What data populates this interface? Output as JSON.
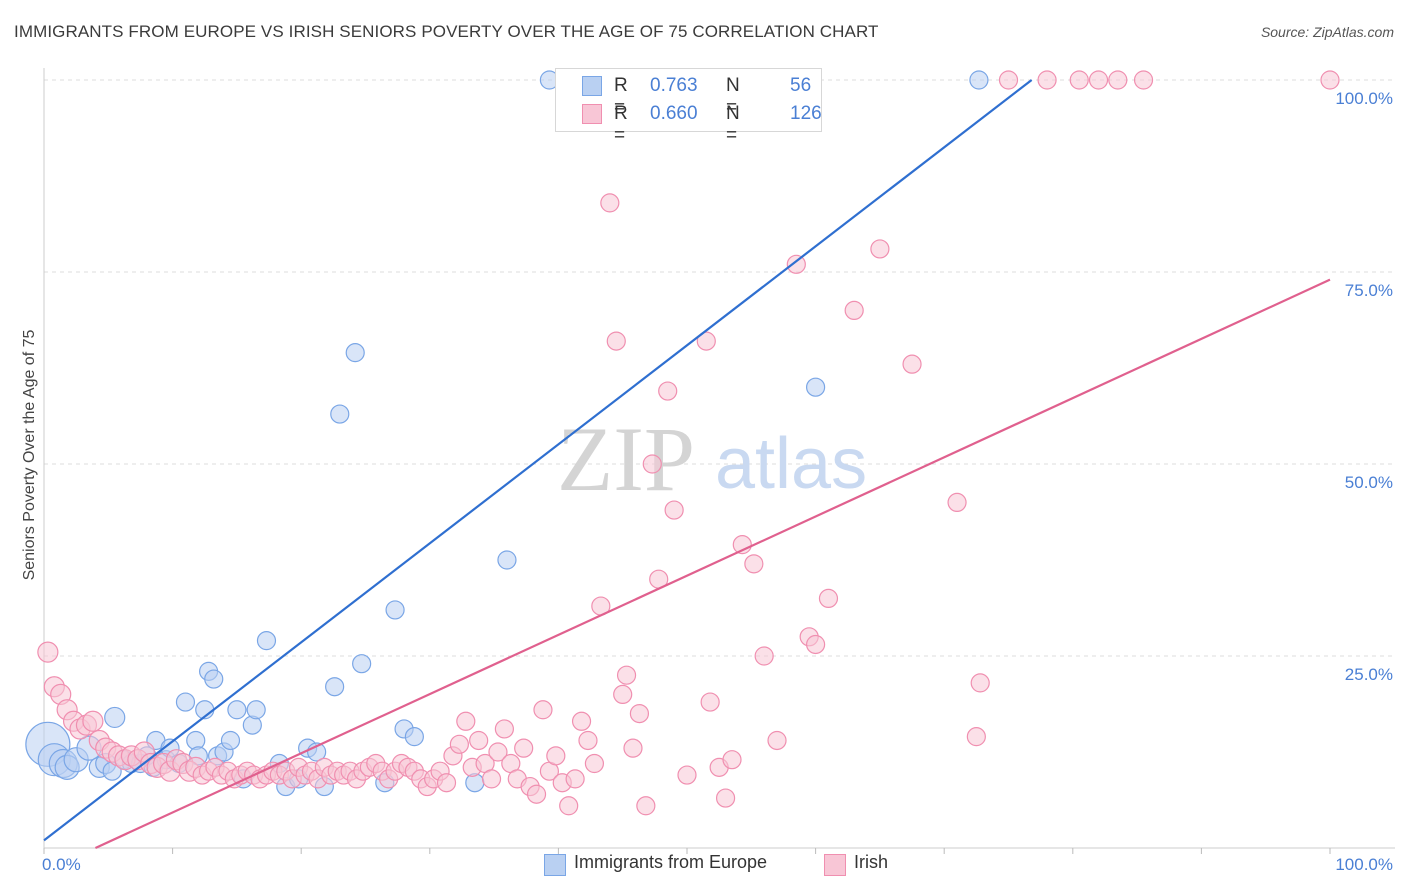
{
  "title": "IMMIGRANTS FROM EUROPE VS IRISH SENIORS POVERTY OVER THE AGE OF 75 CORRELATION CHART",
  "source": "Source: ZipAtlas.com",
  "watermark": {
    "zip": "ZIP",
    "atlas": "atlas"
  },
  "legend": {
    "r_label": "R =",
    "n_label": "N =",
    "series": [
      {
        "name": "Immigrants from Europe",
        "r": "0.763",
        "n": "56",
        "color": "#7aa6e6",
        "fill": "#b9d0f2"
      },
      {
        "name": "Irish",
        "r": "0.660",
        "n": "126",
        "color": "#f08fb0",
        "fill": "#f8c6d6"
      }
    ]
  },
  "chart_data": {
    "type": "scatter",
    "title": "IMMIGRANTS FROM EUROPE VS IRISH SENIORS POVERTY OVER THE AGE OF 75 CORRELATION CHART",
    "ylabel": "Seniors Poverty Over the Age of 75",
    "xlabel": "",
    "xlim": [
      0,
      100
    ],
    "ylim": [
      0,
      100
    ],
    "x_tick_labels": [
      {
        "value": 0,
        "label": "0.0%"
      },
      {
        "value": 100,
        "label": "100.0%"
      }
    ],
    "y_tick_labels": [
      {
        "value": 25,
        "label": "25.0%"
      },
      {
        "value": 50,
        "label": "50.0%"
      },
      {
        "value": 75,
        "label": "75.0%"
      },
      {
        "value": 100,
        "label": "100.0%"
      }
    ],
    "grid": true,
    "legend_position": "top-center",
    "series": [
      {
        "name": "Immigrants from Europe",
        "color": "#4a82d6",
        "trend": {
          "x": [
            0,
            76.8
          ],
          "y": [
            1.0,
            100.0
          ],
          "color": "#2f6fd0"
        },
        "points": [
          [
            0.3,
            13.5,
            22
          ],
          [
            0.8,
            11.5,
            16
          ],
          [
            1.5,
            11.0,
            14
          ],
          [
            1.8,
            10.5,
            12
          ],
          [
            2.5,
            11.5,
            12
          ],
          [
            3.5,
            13.0,
            12
          ],
          [
            4.3,
            10.5,
            10
          ],
          [
            4.8,
            11.0,
            10
          ],
          [
            5.3,
            10.0,
            9
          ],
          [
            5.5,
            17.0,
            10
          ],
          [
            6.2,
            11.5,
            9
          ],
          [
            6.8,
            11.0,
            9
          ],
          [
            7.5,
            11.0,
            9
          ],
          [
            8.0,
            12.0,
            9
          ],
          [
            8.5,
            10.5,
            9
          ],
          [
            8.7,
            14.0,
            9
          ],
          [
            9.5,
            11.5,
            9
          ],
          [
            9.8,
            13.0,
            9
          ],
          [
            10.5,
            11.0,
            9
          ],
          [
            11.0,
            19.0,
            9
          ],
          [
            11.8,
            14.0,
            9
          ],
          [
            12.0,
            12.0,
            9
          ],
          [
            12.5,
            18.0,
            9
          ],
          [
            12.8,
            23.0,
            9
          ],
          [
            13.2,
            22.0,
            9
          ],
          [
            13.5,
            12.0,
            9
          ],
          [
            14.0,
            12.5,
            9
          ],
          [
            14.5,
            14.0,
            9
          ],
          [
            15.0,
            18.0,
            9
          ],
          [
            15.5,
            9.0,
            9
          ],
          [
            16.2,
            16.0,
            9
          ],
          [
            16.5,
            18.0,
            9
          ],
          [
            17.3,
            27.0,
            9
          ],
          [
            18.3,
            11.0,
            9
          ],
          [
            18.8,
            8.0,
            9
          ],
          [
            19.8,
            9.0,
            9
          ],
          [
            20.5,
            13.0,
            9
          ],
          [
            21.2,
            12.5,
            9
          ],
          [
            21.8,
            8.0,
            9
          ],
          [
            22.6,
            21.0,
            9
          ],
          [
            23.0,
            56.5,
            9
          ],
          [
            24.2,
            64.5,
            9
          ],
          [
            24.7,
            24.0,
            9
          ],
          [
            26.5,
            8.5,
            9
          ],
          [
            27.3,
            31.0,
            9
          ],
          [
            28.0,
            15.5,
            9
          ],
          [
            28.8,
            14.5,
            9
          ],
          [
            33.5,
            8.5,
            9
          ],
          [
            36.0,
            37.5,
            9
          ],
          [
            39.3,
            100.0,
            9
          ],
          [
            40.5,
            100.0,
            9
          ],
          [
            60.0,
            60.0,
            9
          ],
          [
            72.7,
            100.0,
            9
          ]
        ]
      },
      {
        "name": "Irish",
        "color": "#ef8aac",
        "trend": {
          "x": [
            4.0,
            100.0
          ],
          "y": [
            0.0,
            74.0
          ],
          "color": "#e0608e"
        },
        "points": [
          [
            0.3,
            25.5,
            10
          ],
          [
            0.8,
            21.0,
            10
          ],
          [
            1.3,
            20.0,
            10
          ],
          [
            1.8,
            18.0,
            10
          ],
          [
            2.3,
            16.5,
            10
          ],
          [
            2.8,
            15.5,
            10
          ],
          [
            3.3,
            16.0,
            10
          ],
          [
            3.8,
            16.5,
            10
          ],
          [
            4.3,
            14.0,
            10
          ],
          [
            4.8,
            13.0,
            10
          ],
          [
            5.3,
            12.5,
            10
          ],
          [
            5.8,
            12.0,
            10
          ],
          [
            6.3,
            11.5,
            10
          ],
          [
            6.8,
            12.0,
            10
          ],
          [
            7.3,
            11.5,
            10
          ],
          [
            7.8,
            12.5,
            10
          ],
          [
            8.3,
            11.0,
            10
          ],
          [
            8.8,
            10.5,
            10
          ],
          [
            9.3,
            11.0,
            10
          ],
          [
            9.8,
            10.0,
            10
          ],
          [
            10.3,
            11.5,
            10
          ],
          [
            10.8,
            11.0,
            10
          ],
          [
            11.3,
            10.0,
            10
          ],
          [
            11.8,
            10.5,
            10
          ],
          [
            12.3,
            9.5,
            9
          ],
          [
            12.8,
            10.0,
            9
          ],
          [
            13.3,
            10.5,
            9
          ],
          [
            13.8,
            9.5,
            9
          ],
          [
            14.3,
            10.0,
            9
          ],
          [
            14.8,
            9.0,
            9
          ],
          [
            15.3,
            9.5,
            9
          ],
          [
            15.8,
            10.0,
            9
          ],
          [
            16.3,
            9.5,
            9
          ],
          [
            16.8,
            9.0,
            9
          ],
          [
            17.3,
            9.5,
            9
          ],
          [
            17.8,
            10.0,
            9
          ],
          [
            18.3,
            9.5,
            9
          ],
          [
            18.8,
            10.0,
            9
          ],
          [
            19.3,
            9.0,
            9
          ],
          [
            19.8,
            10.5,
            9
          ],
          [
            20.3,
            9.5,
            9
          ],
          [
            20.8,
            10.0,
            9
          ],
          [
            21.3,
            9.0,
            9
          ],
          [
            21.8,
            10.5,
            9
          ],
          [
            22.3,
            9.5,
            9
          ],
          [
            22.8,
            10.0,
            9
          ],
          [
            23.3,
            9.5,
            9
          ],
          [
            23.8,
            10.0,
            9
          ],
          [
            24.3,
            9.0,
            9
          ],
          [
            24.8,
            10.0,
            9
          ],
          [
            25.3,
            10.5,
            9
          ],
          [
            25.8,
            11.0,
            9
          ],
          [
            26.3,
            10.0,
            9
          ],
          [
            26.8,
            9.0,
            9
          ],
          [
            27.3,
            10.0,
            9
          ],
          [
            27.8,
            11.0,
            9
          ],
          [
            28.3,
            10.5,
            9
          ],
          [
            28.8,
            10.0,
            9
          ],
          [
            29.3,
            9.0,
            9
          ],
          [
            29.8,
            8.0,
            9
          ],
          [
            30.3,
            9.0,
            9
          ],
          [
            30.8,
            10.0,
            9
          ],
          [
            31.3,
            8.5,
            9
          ],
          [
            31.8,
            12.0,
            9
          ],
          [
            32.3,
            13.5,
            9
          ],
          [
            32.8,
            16.5,
            9
          ],
          [
            33.3,
            10.5,
            9
          ],
          [
            33.8,
            14.0,
            9
          ],
          [
            34.3,
            11.0,
            9
          ],
          [
            34.8,
            9.0,
            9
          ],
          [
            35.3,
            12.5,
            9
          ],
          [
            35.8,
            15.5,
            9
          ],
          [
            36.3,
            11.0,
            9
          ],
          [
            36.8,
            9.0,
            9
          ],
          [
            37.3,
            13.0,
            9
          ],
          [
            37.8,
            8.0,
            9
          ],
          [
            38.3,
            7.0,
            9
          ],
          [
            38.8,
            18.0,
            9
          ],
          [
            39.3,
            10.0,
            9
          ],
          [
            39.8,
            12.0,
            9
          ],
          [
            40.3,
            8.5,
            9
          ],
          [
            40.8,
            5.5,
            9
          ],
          [
            41.3,
            9.0,
            9
          ],
          [
            41.8,
            16.5,
            9
          ],
          [
            42.3,
            14.0,
            9
          ],
          [
            42.8,
            11.0,
            9
          ],
          [
            43.3,
            31.5,
            9
          ],
          [
            44.0,
            84.0,
            9
          ],
          [
            44.5,
            66.0,
            9
          ],
          [
            45.0,
            20.0,
            9
          ],
          [
            45.3,
            22.5,
            9
          ],
          [
            45.8,
            13.0,
            9
          ],
          [
            46.3,
            17.5,
            9
          ],
          [
            46.8,
            5.5,
            9
          ],
          [
            47.3,
            50.0,
            9
          ],
          [
            47.8,
            35.0,
            9
          ],
          [
            48.5,
            59.5,
            9
          ],
          [
            49.0,
            44.0,
            9
          ],
          [
            50.0,
            9.5,
            9
          ],
          [
            51.5,
            66.0,
            9
          ],
          [
            51.8,
            19.0,
            9
          ],
          [
            52.5,
            10.5,
            9
          ],
          [
            53.0,
            6.5,
            9
          ],
          [
            53.5,
            11.5,
            9
          ],
          [
            54.3,
            39.5,
            9
          ],
          [
            55.2,
            37.0,
            9
          ],
          [
            56.0,
            25.0,
            9
          ],
          [
            57.0,
            14.0,
            9
          ],
          [
            58.5,
            76.0,
            9
          ],
          [
            59.5,
            27.5,
            9
          ],
          [
            60.0,
            26.5,
            9
          ],
          [
            61.0,
            32.5,
            9
          ],
          [
            63.0,
            70.0,
            9
          ],
          [
            65.0,
            78.0,
            9
          ],
          [
            67.5,
            63.0,
            9
          ],
          [
            71.0,
            45.0,
            9
          ],
          [
            72.5,
            14.5,
            9
          ],
          [
            72.8,
            21.5,
            9
          ],
          [
            75.0,
            100.0,
            9
          ],
          [
            78.0,
            100.0,
            9
          ],
          [
            80.5,
            100.0,
            9
          ],
          [
            82.0,
            100.0,
            9
          ],
          [
            83.5,
            100.0,
            9
          ],
          [
            85.5,
            100.0,
            9
          ],
          [
            100.0,
            100.0,
            9
          ]
        ]
      }
    ]
  }
}
